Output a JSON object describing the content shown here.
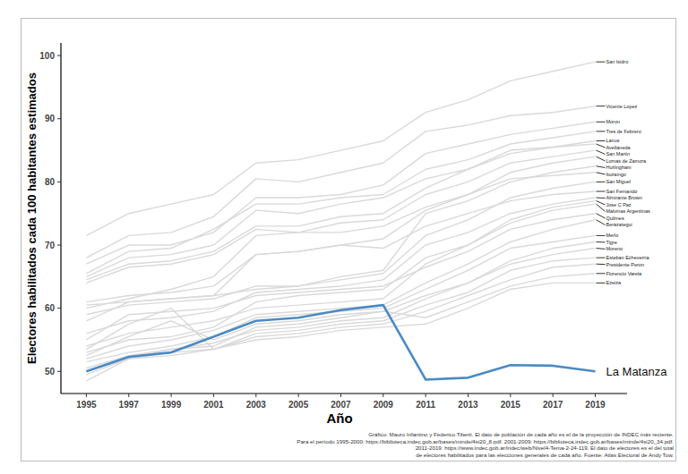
{
  "chart_data": {
    "type": "line",
    "x_label": "Año",
    "y_label": "Electores habilitados cada 100 habitantes estimados",
    "source": [
      "Gráfico: Mauro Infantino y Federico Tiberti. El dato de población de cada año es el de la proyección de INDEC más reciente.",
      "Para el período 1995-2000: https://biblioteca.indec.gob.ar/bases/minde/4si20_8.pdf. 2001-2009: https://biblioteca.indec.gob.ar/bases/minde/4si20_34.pdf.",
      "2011-2019: https://www.indec.gob.ar/indec/web/Nivel4-Tema-2-24-119. El dato de electores es el del total",
      "de electores habilitados para las elecciones generales de cada año. Fuente: Atlas Electoral de Andy Tow."
    ],
    "x": [
      1995,
      1997,
      1999,
      2001,
      2003,
      2005,
      2007,
      2009,
      2011,
      2013,
      2015,
      2017,
      2019
    ],
    "xlim": [
      1993.8,
      2020.5
    ],
    "xticks": [
      1995,
      1997,
      1999,
      2001,
      2003,
      2005,
      2007,
      2009,
      2011,
      2013,
      2015,
      2017,
      2019
    ],
    "ylim": [
      46.5,
      102
    ],
    "yticks": [
      50,
      60,
      70,
      80,
      90,
      100
    ],
    "grid": false,
    "series": [
      {
        "name": "San Isidro",
        "color": "#d9d9d9",
        "values": [
          71.5,
          75,
          76.5,
          78,
          83,
          83.5,
          85,
          86.5,
          91,
          93,
          96,
          97.5,
          99
        ]
      },
      {
        "name": "Vicente Lopez",
        "color": "#d9d9d9",
        "values": [
          68,
          71.5,
          72,
          74.5,
          80.5,
          80,
          81.5,
          83,
          88,
          89,
          90.5,
          91,
          92
        ]
      },
      {
        "name": "Moron",
        "color": "#d9d9d9",
        "values": [
          67,
          70,
          70,
          72,
          77.5,
          77.5,
          78,
          79.5,
          84.5,
          86,
          87.5,
          88.5,
          89.5
        ]
      },
      {
        "name": "Tres de Febrero",
        "color": "#d9d9d9",
        "values": [
          65.5,
          69,
          69.5,
          72.5,
          76.5,
          76.5,
          77.5,
          78,
          82,
          83.5,
          86,
          87,
          88
        ]
      },
      {
        "name": "Lanus",
        "color": "#d9d9d9",
        "values": [
          65,
          68,
          68.5,
          70,
          75.5,
          75,
          76.5,
          77.5,
          80.5,
          82,
          85,
          85.5,
          86.5
        ]
      },
      {
        "name": "Avellaneda",
        "color": "#d9d9d9",
        "values": [
          64.5,
          67,
          67.5,
          69,
          73,
          73,
          74.5,
          75,
          79,
          82,
          84.5,
          85.5,
          86
        ]
      },
      {
        "name": "San Martin",
        "color": "#d9d9d9",
        "values": [
          64,
          66.5,
          67,
          68.5,
          72.5,
          72,
          73.5,
          74,
          78,
          80,
          83,
          84,
          85
        ]
      },
      {
        "name": "Lomas de Zamora",
        "color": "#d9d9d9",
        "values": [
          61,
          62,
          62.5,
          63.5,
          68.5,
          69,
          70,
          71,
          75.5,
          78,
          81.5,
          83,
          84
        ]
      },
      {
        "name": "Hurlingham",
        "color": "#d9d9d9",
        "values": [
          60.5,
          61,
          61.5,
          62,
          63,
          63.5,
          65,
          66,
          75,
          77,
          80,
          81.5,
          82.5
        ]
      },
      {
        "name": "Ituzaingo",
        "color": "#d9d9d9",
        "values": [
          60,
          61.5,
          63,
          65,
          71.5,
          72,
          72,
          73,
          76,
          78,
          80.5,
          81,
          81.5
        ]
      },
      {
        "name": "San Miguel",
        "color": "#d9d9d9",
        "values": [
          59,
          60.5,
          61,
          61.5,
          63.5,
          63.5,
          64.5,
          65.5,
          71.5,
          74,
          77.5,
          79,
          80
        ]
      },
      {
        "name": "San Fernando",
        "color": "#d9d9d9",
        "values": [
          58,
          61,
          61.5,
          62,
          68.5,
          69,
          70,
          69.5,
          73,
          75,
          77,
          78,
          78.5
        ]
      },
      {
        "name": "Almirante Brown",
        "color": "#d9d9d9",
        "values": [
          56,
          58,
          58.5,
          59.5,
          62.5,
          63,
          63.5,
          64.5,
          70,
          72,
          75,
          76.5,
          77.5
        ]
      },
      {
        "name": "Jose C Paz",
        "color": "#d9d9d9",
        "values": [
          53,
          55,
          55.5,
          57,
          61,
          62,
          62.5,
          63,
          68,
          70,
          74,
          76,
          77
        ]
      },
      {
        "name": "Malvinas Argentinas",
        "color": "#d9d9d9",
        "values": [
          54,
          56,
          57,
          58,
          60,
          60.5,
          61,
          61.5,
          67,
          70,
          73.5,
          75.5,
          76.5
        ]
      },
      {
        "name": "Quilmes",
        "color": "#d9d9d9",
        "values": [
          55,
          59,
          59.5,
          60,
          62,
          62.5,
          63,
          63.5,
          66.5,
          69,
          72.5,
          74,
          75
        ]
      },
      {
        "name": "Berazategui",
        "color": "#d9d9d9",
        "values": [
          52,
          54,
          55,
          56.5,
          59,
          59.5,
          60,
          60.5,
          64,
          67,
          70.5,
          72.5,
          74
        ]
      },
      {
        "name": "Merlo",
        "color": "#d9d9d9",
        "values": [
          51.5,
          53,
          54,
          55.5,
          58.5,
          59,
          59.5,
          60,
          63,
          66,
          69.5,
          70.5,
          71.5
        ]
      },
      {
        "name": "Tigre",
        "color": "#d9d9d9",
        "values": [
          50.5,
          52.5,
          53.5,
          54,
          57,
          57.5,
          58.5,
          59.5,
          62,
          64,
          67.5,
          69.5,
          70.5
        ]
      },
      {
        "name": "Moreno",
        "color": "#d9d9d9",
        "values": [
          50,
          52,
          53.5,
          54.5,
          56.5,
          57,
          58,
          58.5,
          61.5,
          64,
          67,
          68.5,
          69.5
        ]
      },
      {
        "name": "Esteban Echeverria",
        "color": "#d9d9d9",
        "values": [
          49.5,
          52,
          53,
          53.5,
          56,
          56.5,
          57.5,
          58,
          60.5,
          62.5,
          66,
          67.5,
          68
        ]
      },
      {
        "name": "Presidente Peron",
        "color": "#d9d9d9",
        "values": [
          53.5,
          57.5,
          60,
          53.5,
          55.5,
          56,
          57,
          57.5,
          59.5,
          62,
          64.5,
          66.5,
          67
        ]
      },
      {
        "name": "Florencio Varela",
        "color": "#d9d9d9",
        "values": [
          52.5,
          55.5,
          58,
          55,
          57.5,
          58,
          59,
          59.5,
          58.5,
          61,
          63.5,
          65,
          65.5
        ]
      },
      {
        "name": "Ezeiza",
        "color": "#d9d9d9",
        "values": [
          48.5,
          52,
          52.5,
          53.5,
          55,
          55.5,
          56.5,
          57,
          57.5,
          60,
          63,
          64,
          64
        ]
      },
      {
        "name": "La Matanza",
        "color": "#4a8ac4",
        "values": [
          50,
          52.3,
          53,
          55.5,
          58,
          58.5,
          59.7,
          60.5,
          48.7,
          49,
          51,
          50.9,
          50
        ]
      }
    ]
  }
}
